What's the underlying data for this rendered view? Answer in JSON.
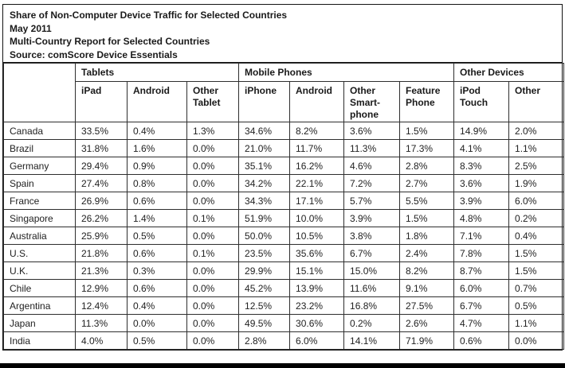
{
  "colors": {
    "background": "#ffffff",
    "grid_border": "#2e2e2e",
    "frame_border": "#141414",
    "text": "#1c1c1c",
    "bottom_bar": "#000000"
  },
  "title_block": {
    "line1": "Share of Non-Computer Device Traffic for Selected Countries",
    "line2": "May 2011",
    "line3": "Multi-Country Report for Selected Countries",
    "line4": "Source: comScore Device Essentials"
  },
  "chart_data": {
    "type": "table",
    "title": "Share of Non-Computer Device Traffic for Selected Countries",
    "subtitle": "Multi-Country Report for Selected Countries",
    "period": "May 2011",
    "source": "Source: comScore Device Essentials",
    "unit": "percent share",
    "column_groups": [
      {
        "label": "",
        "span": 1
      },
      {
        "label": "Tablets",
        "span": 3
      },
      {
        "label": "Mobile Phones",
        "span": 4
      },
      {
        "label": "Other Devices",
        "span": 2
      }
    ],
    "columns": [
      "",
      "iPad",
      "Android",
      "Other Tablet",
      "iPhone",
      "Android",
      "Other Smart-phone",
      "Feature Phone",
      "iPod Touch",
      "Other"
    ],
    "rows": [
      {
        "country": "Canada",
        "values": [
          "33.5%",
          "0.4%",
          "1.3%",
          "34.6%",
          "8.2%",
          "3.6%",
          "1.5%",
          "14.9%",
          "2.0%"
        ]
      },
      {
        "country": "Brazil",
        "values": [
          "31.8%",
          "1.6%",
          "0.0%",
          "21.0%",
          "11.7%",
          "11.3%",
          "17.3%",
          "4.1%",
          "1.1%"
        ]
      },
      {
        "country": "Germany",
        "values": [
          "29.4%",
          "0.9%",
          "0.0%",
          "35.1%",
          "16.2%",
          "4.6%",
          "2.8%",
          "8.3%",
          "2.5%"
        ]
      },
      {
        "country": "Spain",
        "values": [
          "27.4%",
          "0.8%",
          "0.0%",
          "34.2%",
          "22.1%",
          "7.2%",
          "2.7%",
          "3.6%",
          "1.9%"
        ]
      },
      {
        "country": "France",
        "values": [
          "26.9%",
          "0.6%",
          "0.0%",
          "34.3%",
          "17.1%",
          "5.7%",
          "5.5%",
          "3.9%",
          "6.0%"
        ]
      },
      {
        "country": "Singapore",
        "values": [
          "26.2%",
          "1.4%",
          "0.1%",
          "51.9%",
          "10.0%",
          "3.9%",
          "1.5%",
          "4.8%",
          "0.2%"
        ]
      },
      {
        "country": "Australia",
        "values": [
          "25.9%",
          "0.5%",
          "0.0%",
          "50.0%",
          "10.5%",
          "3.8%",
          "1.8%",
          "7.1%",
          "0.4%"
        ]
      },
      {
        "country": "U.S.",
        "values": [
          "21.8%",
          "0.6%",
          "0.1%",
          "23.5%",
          "35.6%",
          "6.7%",
          "2.4%",
          "7.8%",
          "1.5%"
        ]
      },
      {
        "country": "U.K.",
        "values": [
          "21.3%",
          "0.3%",
          "0.0%",
          "29.9%",
          "15.1%",
          "15.0%",
          "8.2%",
          "8.7%",
          "1.5%"
        ]
      },
      {
        "country": "Chile",
        "values": [
          "12.9%",
          "0.6%",
          "0.0%",
          "45.2%",
          "13.9%",
          "11.6%",
          "9.1%",
          "6.0%",
          "0.7%"
        ]
      },
      {
        "country": "Argentina",
        "values": [
          "12.4%",
          "0.4%",
          "0.0%",
          "12.5%",
          "23.2%",
          "16.8%",
          "27.5%",
          "6.7%",
          "0.5%"
        ]
      },
      {
        "country": "Japan",
        "values": [
          "11.3%",
          "0.0%",
          "0.0%",
          "49.5%",
          "30.6%",
          "0.2%",
          "2.6%",
          "4.7%",
          "1.1%"
        ]
      },
      {
        "country": "India",
        "values": [
          "4.0%",
          "0.5%",
          "0.0%",
          "2.8%",
          "6.0%",
          "14.1%",
          "71.9%",
          "0.6%",
          "0.0%"
        ]
      }
    ]
  }
}
